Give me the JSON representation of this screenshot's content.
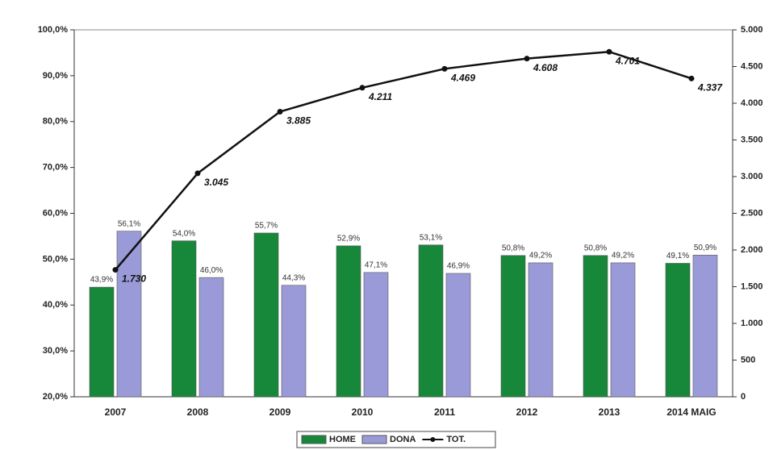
{
  "chart_data": {
    "type": "bar",
    "categories": [
      "2007",
      "2008",
      "2009",
      "2010",
      "2011",
      "2012",
      "2013",
      "2014 MAIG"
    ],
    "series": [
      {
        "name": "HOME",
        "color": "#17873a",
        "values": [
          43.9,
          54.0,
          55.7,
          52.9,
          53.1,
          50.8,
          50.8,
          49.1
        ],
        "value_labels": [
          "43,9%",
          "54,0%",
          "55,7%",
          "52,9%",
          "53,1%",
          "50,8%",
          "50,8%",
          "49,1%"
        ]
      },
      {
        "name": "DONA",
        "color": "#9a9ad8",
        "values": [
          56.1,
          46.0,
          44.3,
          47.1,
          46.9,
          49.2,
          49.2,
          50.9
        ],
        "value_labels": [
          "56,1%",
          "46,0%",
          "44,3%",
          "47,1%",
          "46,9%",
          "49,2%",
          "49,2%",
          "50,9%"
        ]
      },
      {
        "name": "TOT.",
        "type": "line",
        "axis": "y2",
        "color": "#111111",
        "values": [
          1730,
          3045,
          3885,
          4211,
          4469,
          4608,
          4701,
          4337
        ],
        "value_labels": [
          "1.730",
          "3.045",
          "3.885",
          "4.211",
          "4.469",
          "4.608",
          "4.701",
          "4.337"
        ]
      }
    ],
    "ylim": [
      20,
      100
    ],
    "yticks": [
      {
        "value": 20,
        "label": "20,0%"
      },
      {
        "value": 30,
        "label": "30,0%"
      },
      {
        "value": 40,
        "label": "40,0%"
      },
      {
        "value": 50,
        "label": "50,0%"
      },
      {
        "value": 60,
        "label": "60,0%"
      },
      {
        "value": 70,
        "label": "70,0%"
      },
      {
        "value": 80,
        "label": "80,0%"
      },
      {
        "value": 90,
        "label": "90,0%"
      },
      {
        "value": 100,
        "label": "100,0%"
      }
    ],
    "y2lim": [
      0,
      5000
    ],
    "y2ticks": [
      0,
      500,
      {
        "value": 1000,
        "label": "1.000"
      },
      {
        "value": 1500,
        "label": "1.500"
      },
      {
        "value": 2000,
        "label": "2.000"
      },
      {
        "value": 2500,
        "label": "2.500"
      },
      {
        "value": 3000,
        "label": "3.000"
      },
      {
        "value": 3500,
        "label": "3.500"
      },
      {
        "value": 4000,
        "label": "4.000"
      },
      {
        "value": 4500,
        "label": "4.500"
      },
      {
        "value": 5000,
        "label": "5.000"
      }
    ],
    "legend": "bottom"
  }
}
